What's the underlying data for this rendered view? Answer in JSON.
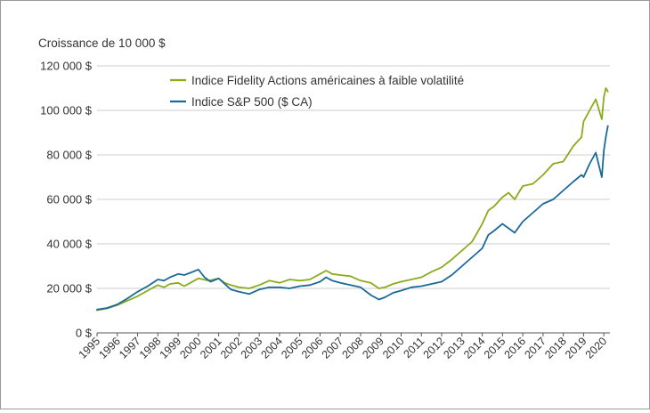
{
  "chart_data": {
    "type": "line",
    "ylabel": "Croissance de 10 000 $",
    "ylim": [
      0,
      120000
    ],
    "yticks": [
      {
        "value": 0,
        "label": "0 $"
      },
      {
        "value": 20000,
        "label": "20 000 $"
      },
      {
        "value": 40000,
        "label": "40 000 $"
      },
      {
        "value": 60000,
        "label": "60 000 $"
      },
      {
        "value": 80000,
        "label": "80 000 $"
      },
      {
        "value": 100000,
        "label": "100 000 $"
      },
      {
        "value": 120000,
        "label": "120 000 $"
      }
    ],
    "xlim": [
      1995,
      2020.3
    ],
    "xticks": [
      "1995",
      "1996",
      "1997",
      "1998",
      "1999",
      "2000",
      "2001",
      "2002",
      "2003",
      "2004",
      "2005",
      "2006",
      "2007",
      "2008",
      "2009",
      "2010",
      "2011",
      "2012",
      "2013",
      "2014",
      "2015",
      "2016",
      "2017",
      "2018",
      "2019",
      "2020"
    ],
    "grid": "horizontal",
    "legend": "top-left",
    "series": [
      {
        "name": "Indice Fidelity Actions américaines à faible volatilité",
        "color": "#8aab1c",
        "x": [
          1995.0,
          1995.5,
          1996.0,
          1996.5,
          1997.0,
          1997.5,
          1998.0,
          1998.3,
          1998.6,
          1999.0,
          1999.3,
          1999.6,
          2000.0,
          2000.5,
          2001.0,
          2001.3,
          2001.6,
          2002.0,
          2002.5,
          2003.0,
          2003.5,
          2004.0,
          2004.5,
          2005.0,
          2005.5,
          2006.0,
          2006.3,
          2006.6,
          2007.0,
          2007.5,
          2008.0,
          2008.5,
          2008.9,
          2009.2,
          2009.6,
          2010.0,
          2010.5,
          2011.0,
          2011.5,
          2012.0,
          2012.5,
          2013.0,
          2013.5,
          2014.0,
          2014.3,
          2014.6,
          2015.0,
          2015.3,
          2015.6,
          2016.0,
          2016.5,
          2017.0,
          2017.5,
          2018.0,
          2018.5,
          2018.9,
          2019.0,
          2019.3,
          2019.6,
          2019.9,
          2020.0,
          2020.1,
          2020.2
        ],
        "y": [
          10200,
          11000,
          12500,
          14500,
          16500,
          19000,
          21500,
          20500,
          22000,
          22500,
          21000,
          22500,
          24500,
          23500,
          24500,
          22500,
          21500,
          20500,
          20000,
          21500,
          23500,
          22500,
          24000,
          23500,
          24000,
          26500,
          28000,
          26500,
          26000,
          25500,
          23500,
          22500,
          20000,
          20500,
          22000,
          23000,
          24000,
          25000,
          27500,
          29500,
          33000,
          37000,
          41000,
          49000,
          55000,
          57000,
          61000,
          63000,
          60000,
          66000,
          67000,
          71000,
          76000,
          77000,
          84000,
          88000,
          95000,
          100000,
          105000,
          96000,
          106000,
          110000,
          108500
        ]
      },
      {
        "name": "Indice S&P 500 ($ CA)",
        "color": "#1a6a99",
        "x": [
          1995.0,
          1995.5,
          1996.0,
          1996.5,
          1997.0,
          1997.5,
          1998.0,
          1998.3,
          1998.6,
          1999.0,
          1999.3,
          1999.6,
          2000.0,
          2000.3,
          2000.6,
          2001.0,
          2001.3,
          2001.6,
          2002.0,
          2002.5,
          2003.0,
          2003.5,
          2004.0,
          2004.5,
          2005.0,
          2005.5,
          2006.0,
          2006.3,
          2006.6,
          2007.0,
          2007.5,
          2008.0,
          2008.5,
          2008.9,
          2009.2,
          2009.6,
          2010.0,
          2010.5,
          2011.0,
          2011.5,
          2012.0,
          2012.5,
          2013.0,
          2013.5,
          2014.0,
          2014.3,
          2014.6,
          2015.0,
          2015.3,
          2015.6,
          2016.0,
          2016.5,
          2017.0,
          2017.5,
          2018.0,
          2018.5,
          2018.9,
          2019.0,
          2019.3,
          2019.6,
          2019.9,
          2020.0,
          2020.1,
          2020.2
        ],
        "y": [
          10500,
          11200,
          12800,
          15500,
          18500,
          21000,
          24000,
          23500,
          25000,
          26500,
          26000,
          27000,
          28500,
          25000,
          23000,
          24500,
          22000,
          19500,
          18500,
          17500,
          19500,
          20500,
          20500,
          20000,
          21000,
          21500,
          23000,
          25000,
          23500,
          22500,
          21500,
          20500,
          17000,
          15000,
          16000,
          18000,
          19000,
          20500,
          21000,
          22000,
          23000,
          26000,
          30000,
          34000,
          38000,
          44000,
          46000,
          49000,
          47000,
          45000,
          50000,
          54000,
          58000,
          60000,
          64000,
          68000,
          71000,
          70000,
          76000,
          81000,
          70000,
          82000,
          88000,
          93000
        ]
      }
    ]
  }
}
